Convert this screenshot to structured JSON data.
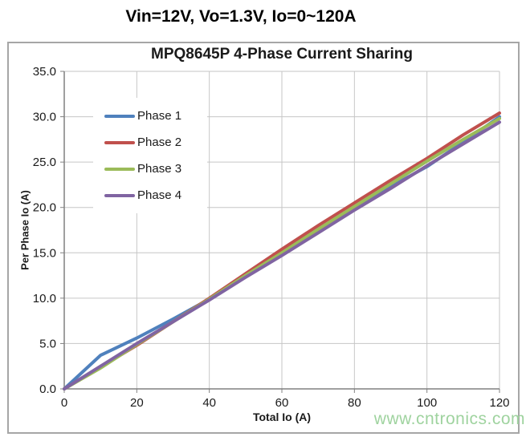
{
  "header": {
    "title": "Vin=12V, Vo=1.3V, Io=0~120A"
  },
  "watermark": {
    "text": "www.cntronics.com",
    "color": "#9fd39f"
  },
  "chart_data": {
    "type": "line",
    "title": "MPQ8645P 4-Phase Current Sharing",
    "xlabel": "Total Io (A)",
    "ylabel": "Per Phase Io (A)",
    "xlim": [
      0,
      120
    ],
    "ylim": [
      0,
      35
    ],
    "x_ticks": [
      0,
      20,
      40,
      60,
      80,
      100,
      120
    ],
    "y_tick_labels": [
      "0.0",
      "5.0",
      "10.0",
      "15.0",
      "20.0",
      "25.0",
      "30.0",
      "35.0"
    ],
    "grid": true,
    "legend_position": "upper-left-inside",
    "x": [
      0,
      10,
      20,
      30,
      40,
      50,
      60,
      70,
      80,
      90,
      100,
      110,
      120
    ],
    "series": [
      {
        "name": "Phase 1",
        "color": "#4f81bd",
        "values": [
          0,
          3.7,
          5.6,
          7.7,
          9.9,
          12.4,
          14.9,
          17.4,
          19.8,
          22.3,
          24.5,
          27.2,
          30.0
        ]
      },
      {
        "name": "Phase 2",
        "color": "#c0504d",
        "values": [
          0,
          2.4,
          4.8,
          7.4,
          10.0,
          12.7,
          15.4,
          18.0,
          20.5,
          23.0,
          25.4,
          28.0,
          30.4
        ]
      },
      {
        "name": "Phase 3",
        "color": "#9bbb59",
        "values": [
          0,
          2.3,
          4.9,
          7.4,
          9.9,
          12.5,
          15.0,
          17.6,
          20.1,
          22.6,
          25.1,
          27.5,
          29.8
        ]
      },
      {
        "name": "Phase 4",
        "color": "#8064a2",
        "values": [
          0,
          2.5,
          5.0,
          7.4,
          9.8,
          12.3,
          14.7,
          17.2,
          19.7,
          22.1,
          24.6,
          27.0,
          29.4
        ]
      }
    ],
    "colors": {
      "grid": "#c6c6c6",
      "axis": "#808080",
      "border": "#a6a6a6",
      "tick_text": "#1a1a1a"
    }
  }
}
